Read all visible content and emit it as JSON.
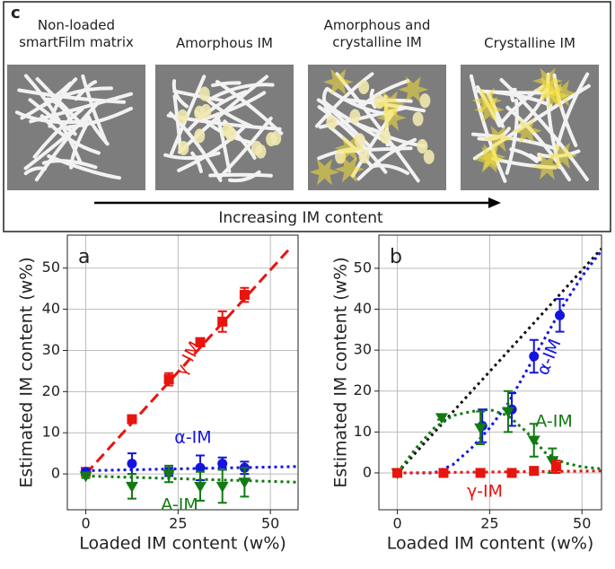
{
  "figure": {
    "label": "c",
    "images": [
      "Non-loaded\nsmartFilm matrix",
      "Amorphous IM",
      "Amorphous and\ncrystalline IM",
      "Crystalline IM"
    ],
    "arrow_label": "Increasing IM content"
  },
  "chart_data": [
    {
      "type": "scatter",
      "panel_label": "a",
      "x_label": "Loaded IM content (w%)",
      "y_label": "Estimated IM content (w%)",
      "xlim": [
        -5,
        57.5
      ],
      "ylim": [
        -8.7,
        58
      ],
      "xticks": [
        0,
        25,
        50
      ],
      "yticks": [
        0,
        10,
        20,
        30,
        40,
        50
      ],
      "grid": true,
      "series": [
        {
          "color": "#e8140e",
          "marker": "square",
          "x": [
            0,
            12.5,
            22.5,
            31,
            37,
            43
          ],
          "values": [
            0.5,
            13.3,
            23,
            32,
            37,
            43.5
          ],
          "errors": [
            0.5,
            0.8,
            1.5,
            1,
            2.5,
            1.7
          ]
        },
        {
          "color": "#1414e0",
          "marker": "circle",
          "x": [
            0,
            12.5,
            22.5,
            31,
            37,
            43
          ],
          "values": [
            0.5,
            2.5,
            0.5,
            1.5,
            2.5,
            1.5
          ],
          "errors": [
            0.5,
            2.5,
            1,
            3,
            1.5,
            1.5
          ]
        },
        {
          "color": "#127a12",
          "marker": "triangle",
          "x": [
            0,
            12.5,
            22.5,
            31,
            37,
            43
          ],
          "values": [
            -0.5,
            -3,
            0,
            -3,
            -3,
            -2
          ],
          "errors": [
            0.5,
            3,
            2,
            3.5,
            4,
            3.5
          ]
        },
        {
          "color": "#e8140e",
          "line": "dashed",
          "x": [
            0,
            55
          ],
          "values": [
            0,
            54.5
          ]
        },
        {
          "color": "#1414e0",
          "line": "dotted",
          "x": [
            0,
            57.5
          ],
          "values": [
            0.8,
            1.8
          ]
        },
        {
          "color": "#127a12",
          "line": "dotted",
          "x": [
            0,
            57.5
          ],
          "values": [
            -0.5,
            -2
          ]
        }
      ],
      "annotations": [
        {
          "text": "γ-IM",
          "color": "#e8140e"
        },
        {
          "text": "α-IM",
          "color": "#1414e0"
        },
        {
          "text": "A-IM",
          "color": "#127a12"
        }
      ]
    },
    {
      "type": "scatter",
      "panel_label": "b",
      "x_label": "Loaded IM content (w%)",
      "y_label": "Estimated IM content (w%)",
      "xlim": [
        -5,
        55.3
      ],
      "ylim": [
        -9,
        58.1
      ],
      "xticks": [
        0,
        25,
        50
      ],
      "yticks": [
        0,
        10,
        20,
        30,
        40,
        50
      ],
      "grid": true,
      "series": [
        {
          "color": "#111111",
          "line": "dotted",
          "x": [
            0,
            55.3
          ],
          "values": [
            0,
            54.8
          ]
        },
        {
          "color": "#1414e0",
          "line": "dotted",
          "x": [
            0,
            10,
            15,
            20,
            25,
            30,
            35,
            40,
            45,
            50,
            55
          ],
          "values": [
            0,
            0,
            2,
            6,
            11,
            17,
            25,
            33,
            41,
            48,
            54
          ]
        },
        {
          "color": "#127a12",
          "line": "dotted",
          "x": [
            0,
            5,
            10,
            15,
            20,
            25,
            30,
            35,
            40,
            45,
            50,
            55.3
          ],
          "values": [
            0,
            6,
            11,
            14,
            15,
            15.5,
            14,
            10,
            5,
            2.5,
            1.5,
            1
          ]
        },
        {
          "color": "#e8140e",
          "line": "dotted",
          "x": [
            0,
            55.3
          ],
          "values": [
            0,
            0.5
          ]
        },
        {
          "color": "#1414e0",
          "marker": "circle",
          "x": [
            0,
            12.5,
            23,
            31,
            37,
            44
          ],
          "values": [
            0,
            0,
            11.5,
            15.5,
            28.5,
            38.5
          ],
          "errors": [
            0.3,
            0.3,
            4,
            4,
            4,
            4
          ]
        },
        {
          "color": "#127a12",
          "marker": "triangle",
          "x": [
            0,
            12,
            22.5,
            30,
            37,
            42
          ],
          "values": [
            0,
            13.5,
            11,
            15,
            8,
            3
          ],
          "errors": [
            0.3,
            0.5,
            4,
            5,
            4,
            3
          ]
        },
        {
          "color": "#e8140e",
          "marker": "square",
          "x": [
            0,
            12.5,
            22.5,
            31,
            37,
            43
          ],
          "values": [
            0,
            0,
            0,
            0,
            0.5,
            1.5
          ],
          "errors": [
            0.2,
            0.2,
            0.2,
            0.2,
            0.5,
            1.5
          ]
        }
      ],
      "annotations": [
        {
          "text": "α-IM",
          "color": "#1414e0"
        },
        {
          "text": "A-IM",
          "color": "#127a12"
        },
        {
          "text": "γ-IM",
          "color": "#e8140e"
        }
      ]
    }
  ]
}
